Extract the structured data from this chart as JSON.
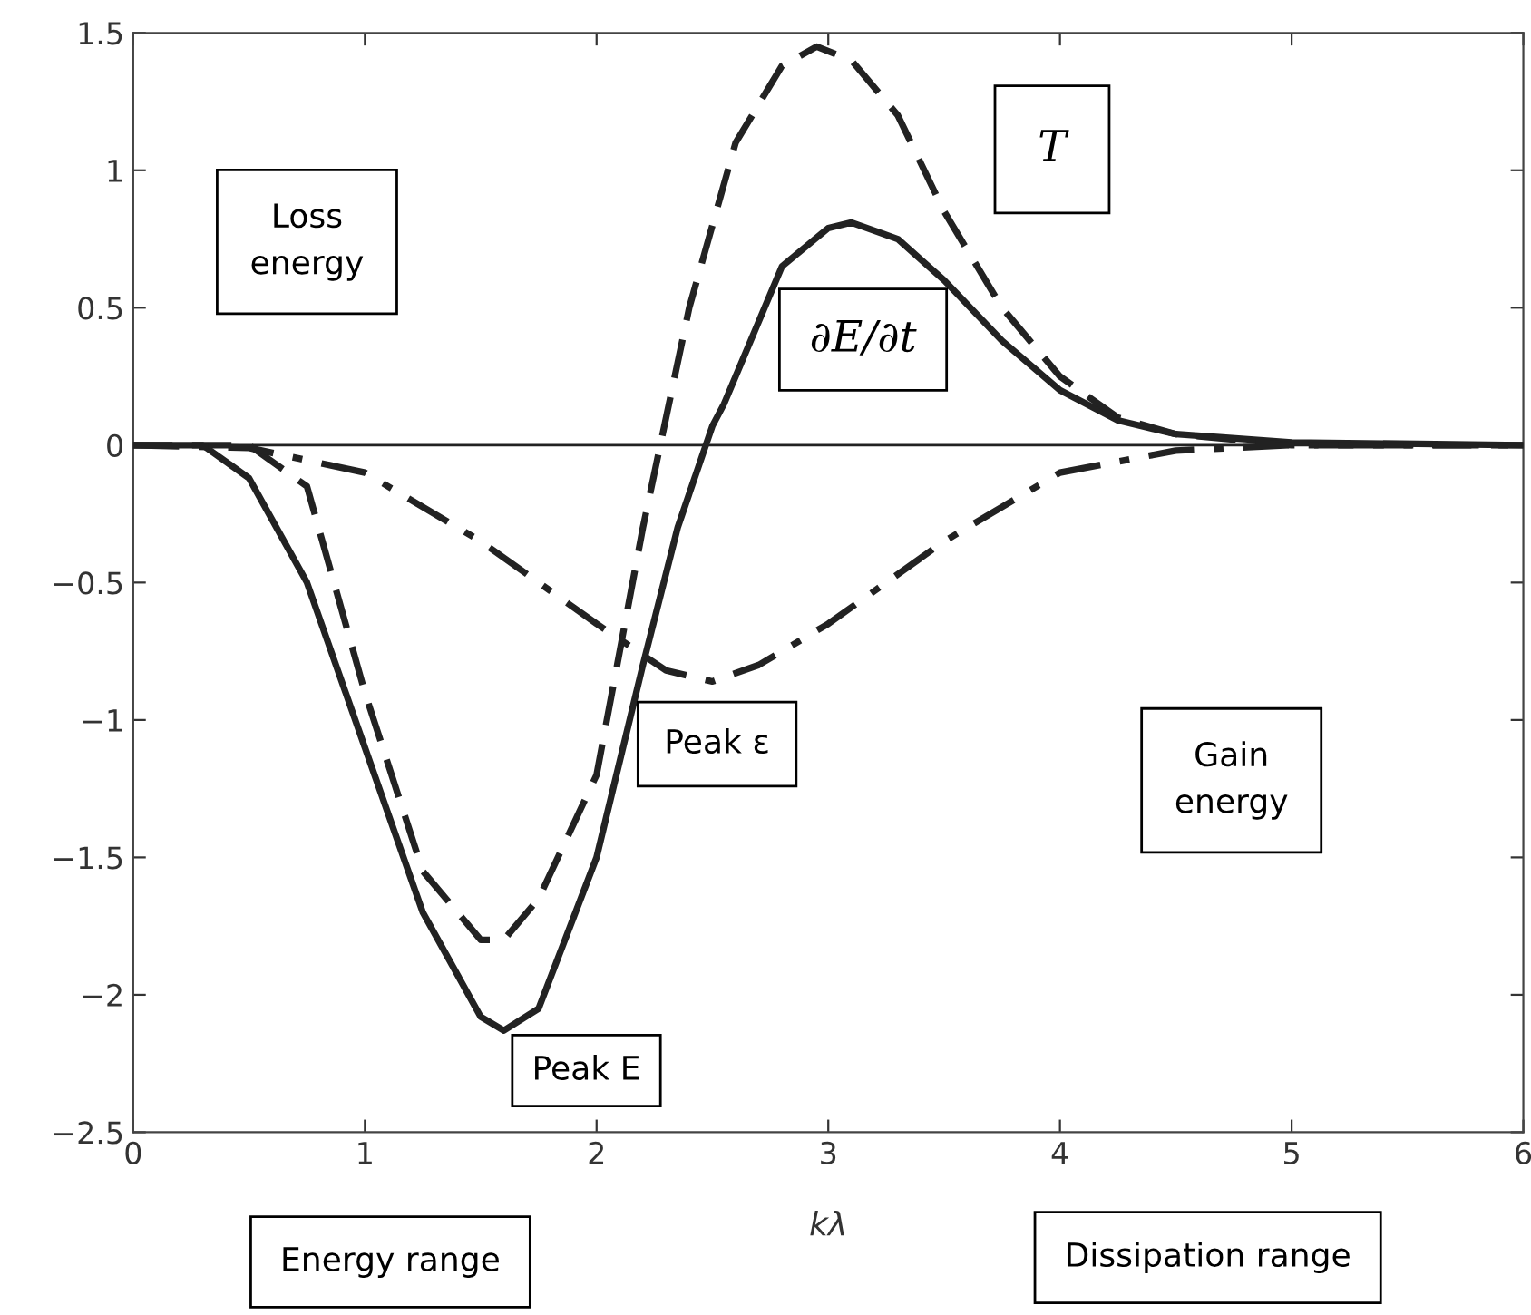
{
  "chart_data": {
    "type": "line",
    "xlabel": "kλ",
    "xlim": [
      0,
      6
    ],
    "ylim": [
      -2.5,
      1.5
    ],
    "xticks": [
      0,
      1,
      2,
      3,
      4,
      5,
      6
    ],
    "yticks": [
      -2.5,
      -2,
      -1.5,
      -1,
      -0.5,
      0,
      0.5,
      1,
      1.5
    ],
    "grid": false,
    "series": [
      {
        "color": "#222222",
        "line_style": "solid",
        "x": [
          0,
          0.3,
          0.5,
          0.75,
          1.0,
          1.25,
          1.5,
          1.6,
          1.75,
          2.0,
          2.2,
          2.35,
          2.5,
          2.55,
          2.8,
          3.0,
          3.1,
          3.3,
          3.5,
          3.75,
          4.0,
          4.25,
          4.5,
          5.0,
          6.0
        ],
        "values": [
          0,
          0,
          -0.12,
          -0.5,
          -1.1,
          -1.7,
          -2.08,
          -2.13,
          -2.05,
          -1.5,
          -0.8,
          -0.3,
          0.07,
          0.15,
          0.65,
          0.79,
          0.81,
          0.75,
          0.6,
          0.38,
          0.2,
          0.09,
          0.04,
          0.01,
          0
        ]
      },
      {
        "color": "#222222",
        "line_style": "dashed",
        "x": [
          0,
          0.5,
          0.75,
          1.0,
          1.25,
          1.5,
          1.6,
          1.75,
          2.0,
          2.2,
          2.4,
          2.6,
          2.8,
          2.95,
          3.1,
          3.3,
          3.5,
          3.75,
          4.0,
          4.25,
          4.5,
          5.0,
          6.0
        ],
        "values": [
          0,
          0,
          -0.15,
          -0.9,
          -1.55,
          -1.8,
          -1.8,
          -1.65,
          -1.2,
          -0.3,
          0.5,
          1.1,
          1.38,
          1.45,
          1.4,
          1.2,
          0.85,
          0.5,
          0.25,
          0.1,
          0.04,
          0,
          0
        ]
      },
      {
        "color": "#222222",
        "line_style": "dashdot",
        "x": [
          0,
          0.5,
          1.0,
          1.5,
          2.0,
          2.3,
          2.5,
          2.7,
          3.0,
          3.5,
          4.0,
          4.5,
          5.0,
          6.0
        ],
        "values": [
          0,
          -0.01,
          -0.1,
          -0.35,
          -0.65,
          -0.82,
          -0.86,
          -0.8,
          -0.65,
          -0.35,
          -0.1,
          -0.02,
          0,
          0
        ]
      }
    ],
    "ref_lines": [
      {
        "axis": "y",
        "value": 0,
        "color": "#222222"
      }
    ],
    "annotations": [
      "Loss energy",
      "T",
      "∂E/∂t",
      "Peak ε",
      "Gain energy",
      "Peak E",
      "Energy range",
      "Dissipation range"
    ]
  }
}
